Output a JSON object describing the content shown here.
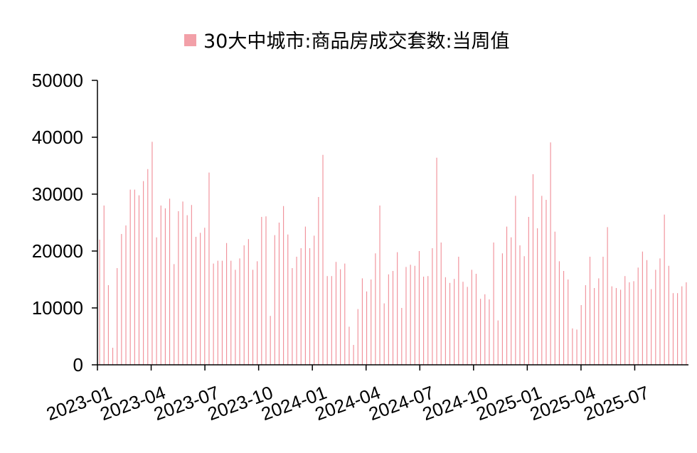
{
  "chart_data": {
    "type": "bar",
    "legend": "30大中城市:商品房成交套数:当周值",
    "legend_color": "#f2a0a8",
    "bar_color": "#f08c96",
    "axis_color": "#000000",
    "ylim": [
      0,
      50000
    ],
    "yticks": [
      0,
      10000,
      20000,
      30000,
      40000,
      50000
    ],
    "yticklabels": [
      "0",
      "10000",
      "20000",
      "30000",
      "40000",
      "50000"
    ],
    "xticklabels": [
      "2023-01",
      "2023-04",
      "2023-07",
      "2023-10",
      "2024-01",
      "2024-04",
      "2024-07",
      "2024-10",
      "2025-01",
      "2025-04",
      "2025-07"
    ],
    "values": [
      22000,
      28000,
      14000,
      3000,
      17000,
      23000,
      24500,
      30800,
      30800,
      29800,
      32300,
      34400,
      39200,
      22400,
      28000,
      27500,
      29200,
      17700,
      27000,
      28700,
      26300,
      28100,
      22500,
      23200,
      24100,
      33800,
      17800,
      18300,
      18300,
      21400,
      18300,
      16700,
      18700,
      21000,
      22100,
      16700,
      18200,
      26000,
      26100,
      8600,
      22800,
      25000,
      27900,
      22900,
      17000,
      19000,
      20500,
      24300,
      20500,
      22700,
      29500,
      36900,
      15600,
      15600,
      18100,
      16800,
      17800,
      6700,
      3500,
      9800,
      15200,
      12900,
      15000,
      19600,
      28000,
      10800,
      15900,
      16500,
      19800,
      10000,
      17200,
      17600,
      17400,
      20000,
      15500,
      15600,
      20500,
      36400,
      21500,
      15400,
      14400,
      15100,
      19000,
      14600,
      13700,
      16700,
      16000,
      11600,
      12400,
      11500,
      21500,
      7800,
      19600,
      24300,
      22400,
      29700,
      21000,
      19100,
      26000,
      33500,
      24000,
      29700,
      29000,
      39100,
      23400,
      18200,
      16500,
      15000,
      6400,
      6200,
      10500,
      14000,
      19000,
      13500,
      15200,
      19000,
      24200,
      13800,
      13500,
      13200,
      15600,
      14500,
      14700,
      17100,
      19900,
      18400,
      13300,
      16700,
      18700,
      26400,
      17400,
      12600,
      12600,
      13800,
      14500
    ]
  }
}
